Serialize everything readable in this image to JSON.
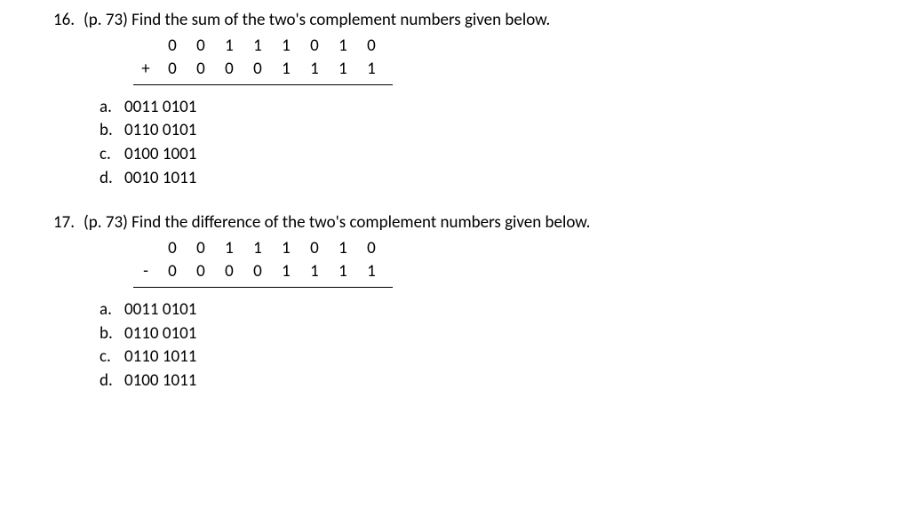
{
  "questions": [
    {
      "number": "16.",
      "pageref": "(p. 73)",
      "prompt": "Find the sum of the two's complement numbers given below.",
      "arith": {
        "row1": [
          "0",
          "0",
          "1",
          "1",
          "1",
          "0",
          "1",
          "0"
        ],
        "op": "+",
        "row2": [
          "0",
          "0",
          "0",
          "0",
          "1",
          "1",
          "1",
          "1"
        ]
      },
      "options": [
        {
          "letter": "a.",
          "text": "0011 0101"
        },
        {
          "letter": "b.",
          "text": "0110 0101"
        },
        {
          "letter": "c.",
          "text": "0100 1001"
        },
        {
          "letter": "d.",
          "text": "0010 1011"
        }
      ]
    },
    {
      "number": "17.",
      "pageref": "(p. 73)",
      "prompt": "Find the difference of the two's complement numbers given below.",
      "arith": {
        "row1": [
          "0",
          "0",
          "1",
          "1",
          "1",
          "0",
          "1",
          "0"
        ],
        "op": "-",
        "row2": [
          "0",
          "0",
          "0",
          "0",
          "1",
          "1",
          "1",
          "1"
        ]
      },
      "options": [
        {
          "letter": "a.",
          "text": "0011 0101"
        },
        {
          "letter": "b.",
          "text": "0110 0101"
        },
        {
          "letter": "c.",
          "text": "0110 1011"
        },
        {
          "letter": "d.",
          "text": "0100 1011"
        }
      ]
    }
  ]
}
